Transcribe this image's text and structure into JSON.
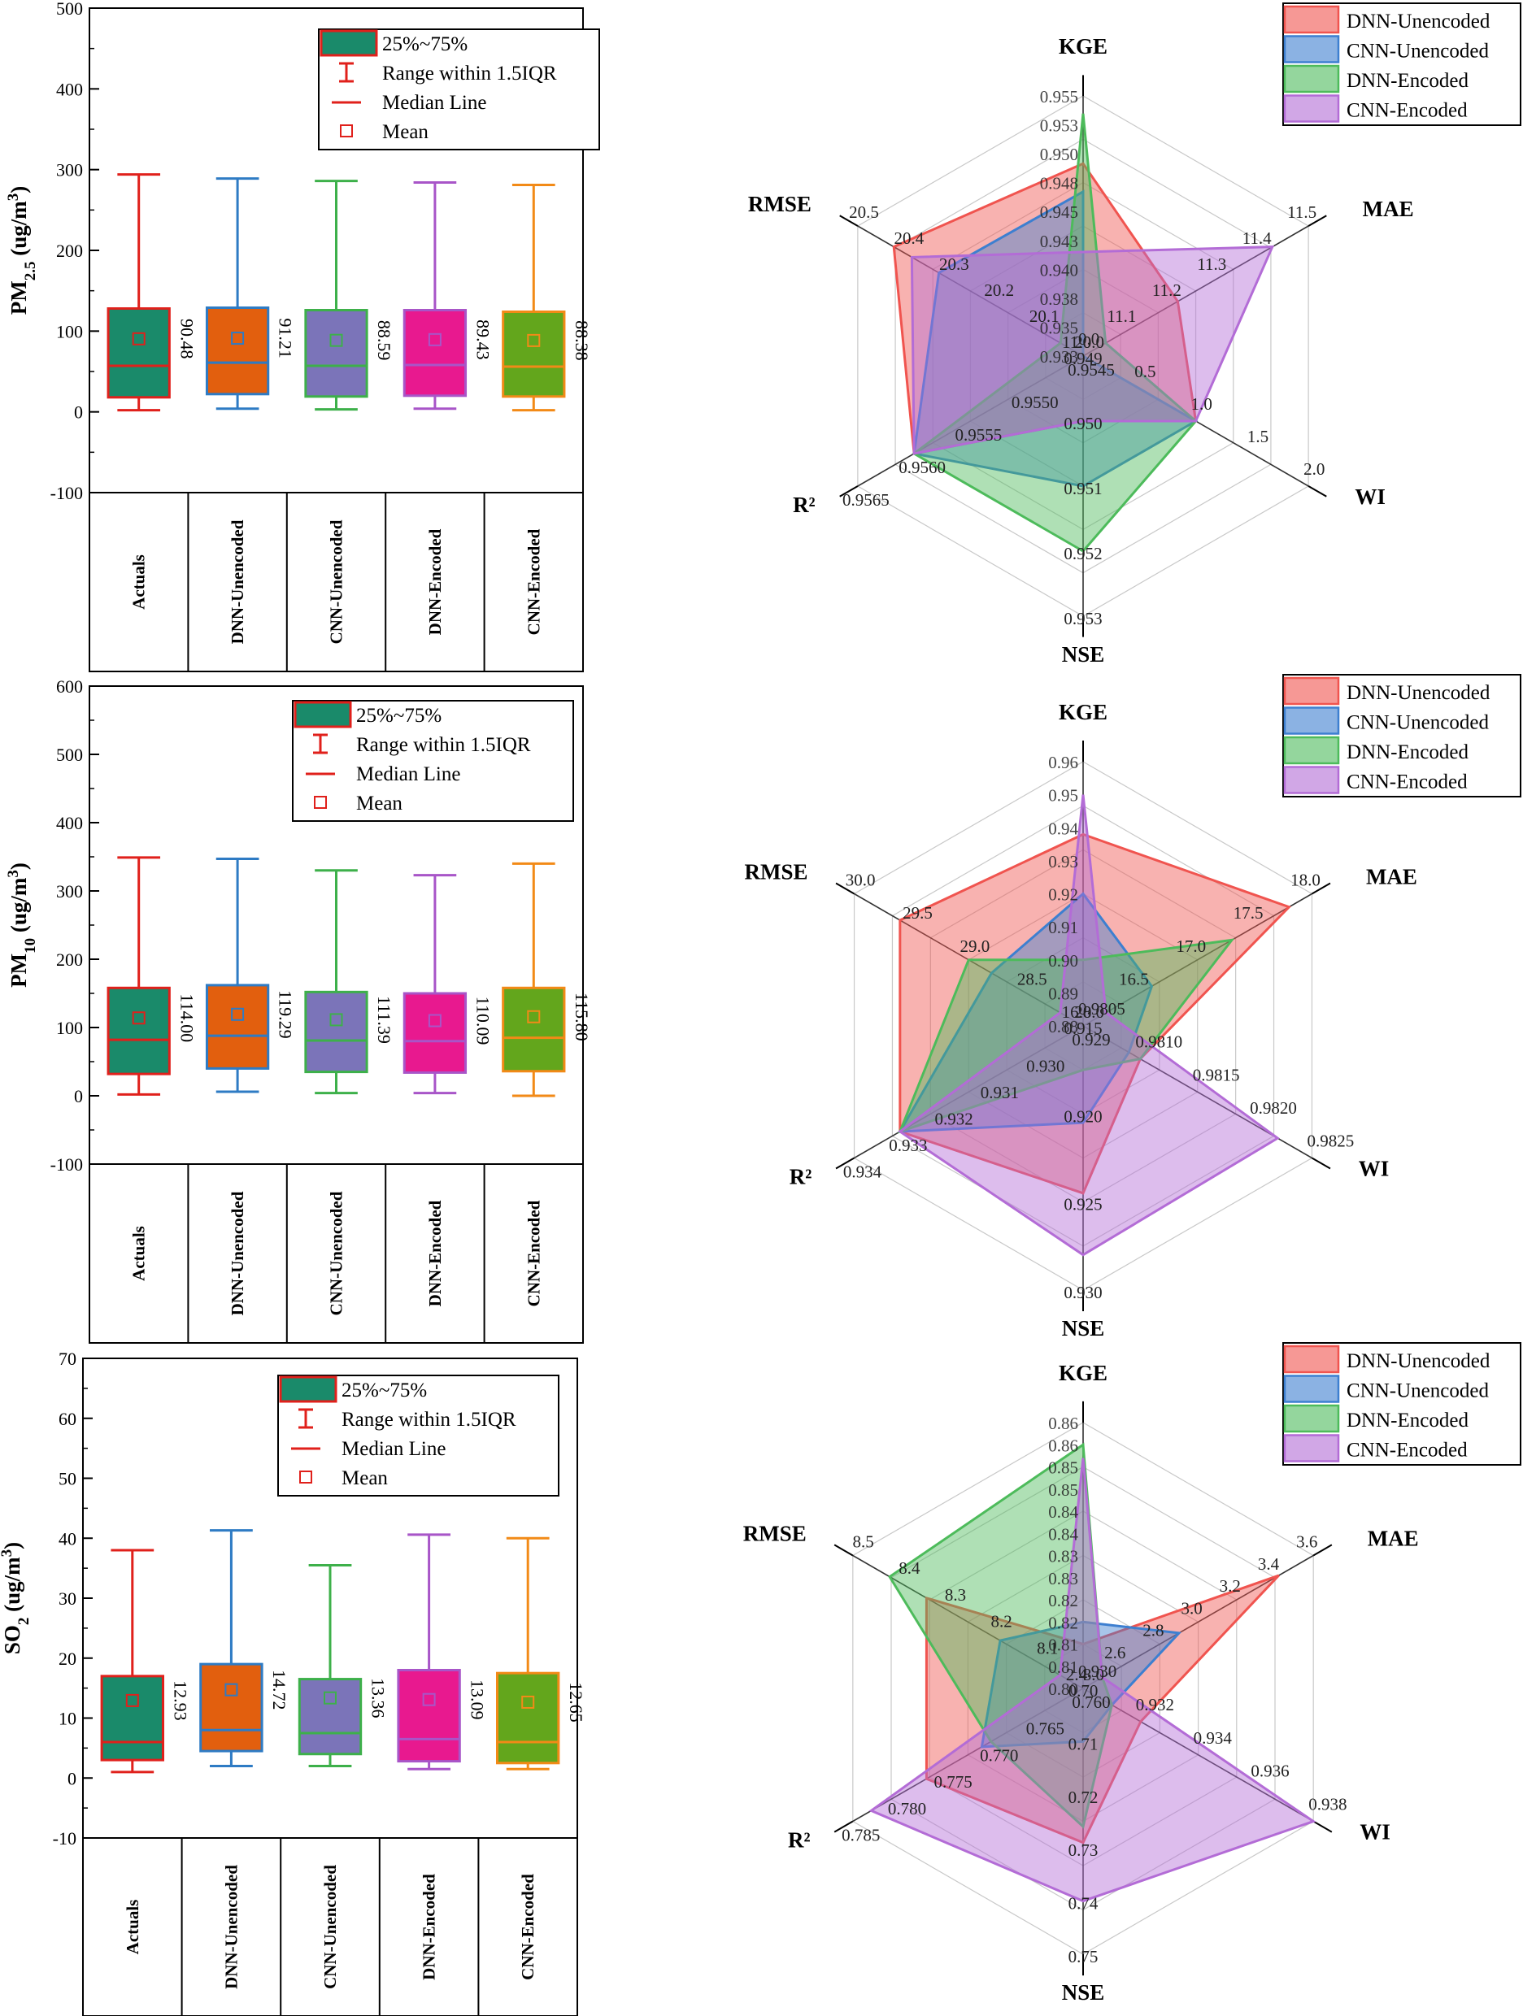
{
  "figure_title": "",
  "colors": {
    "actuals": "#E0201B",
    "dnn_unencoded": "#2E7BC4",
    "cnn_unencoded": "#3DB04A",
    "dnn_encoded": "#A855C8",
    "cnn_encoded": "#F28A17",
    "box_actuals": "#1A8A6A",
    "box_dnn_unencoded": "#E25F0E",
    "box_cnn_unencoded": "#7B74B9",
    "box_dnn_encoded": "#E8198F",
    "box_cnn_encoded": "#63A61C",
    "radar_dnn_unencoded": "#F0544F",
    "radar_cnn_unencoded": "#3D7FD0",
    "radar_dnn_encoded": "#4DBB5B",
    "radar_cnn_encoded": "#B36CD6"
  },
  "chart_data": [
    {
      "type": "box",
      "panel": "PM2.5 box",
      "ylabel": "PM₂.₅ (ug/m³)",
      "ylabel_main": "PM",
      "ylabel_sub": "2.5",
      "ylabel_unit": " (ug/m",
      "ylabel_sup": "3",
      "ylabel_close": ")",
      "ylim": [
        -100,
        500
      ],
      "yticks": [
        -100,
        0,
        100,
        200,
        300,
        400,
        500
      ],
      "categories": [
        "Actuals",
        "DNN-Unencoded",
        "CNN-Unencoded",
        "DNN-Encoded",
        "CNN-Encoded"
      ],
      "boxes": [
        {
          "min": 2,
          "q1": 18,
          "median": 57,
          "q3": 128,
          "max": 294,
          "mean": 90.48,
          "mean_label": "90.48"
        },
        {
          "min": 4,
          "q1": 22,
          "median": 61,
          "q3": 129,
          "max": 289,
          "mean": 91.21,
          "mean_label": "91.21"
        },
        {
          "min": 3,
          "q1": 19,
          "median": 57,
          "q3": 126,
          "max": 286,
          "mean": 88.59,
          "mean_label": "88.59"
        },
        {
          "min": 4,
          "q1": 20,
          "median": 58,
          "q3": 126,
          "max": 284,
          "mean": 89.43,
          "mean_label": "89.43"
        },
        {
          "min": 2,
          "q1": 19,
          "median": 56,
          "q3": 124,
          "max": 281,
          "mean": 88.38,
          "mean_label": "88.38"
        }
      ],
      "legend": [
        "25%~75%",
        "Range within 1.5IQR",
        "Median Line",
        "Mean"
      ]
    },
    {
      "type": "box",
      "panel": "PM10 box",
      "ylabel": "PM₁₀ (ug/m³)",
      "ylabel_main": "PM",
      "ylabel_sub": "10",
      "ylabel_unit": " (ug/m",
      "ylabel_sup": "3",
      "ylabel_close": ")",
      "ylim": [
        -100,
        600
      ],
      "yticks": [
        -100,
        0,
        100,
        200,
        300,
        400,
        500,
        600
      ],
      "categories": [
        "Actuals",
        "DNN-Unencoded",
        "CNN-Unencoded",
        "DNN-Encoded",
        "CNN-Encoded"
      ],
      "boxes": [
        {
          "min": 2,
          "q1": 32,
          "median": 82,
          "q3": 158,
          "max": 349,
          "mean": 114.0,
          "mean_label": "114.00"
        },
        {
          "min": 6,
          "q1": 40,
          "median": 88,
          "q3": 162,
          "max": 347,
          "mean": 119.29,
          "mean_label": "119.29"
        },
        {
          "min": 4,
          "q1": 35,
          "median": 81,
          "q3": 152,
          "max": 330,
          "mean": 111.39,
          "mean_label": "111.39"
        },
        {
          "min": 4,
          "q1": 34,
          "median": 80,
          "q3": 150,
          "max": 323,
          "mean": 110.09,
          "mean_label": "110.09"
        },
        {
          "min": 0,
          "q1": 36,
          "median": 85,
          "q3": 158,
          "max": 340,
          "mean": 115.8,
          "mean_label": "115.80"
        }
      ],
      "legend": [
        "25%~75%",
        "Range within 1.5IQR",
        "Median Line",
        "Mean"
      ]
    },
    {
      "type": "box",
      "panel": "SO2 box",
      "ylabel": "SO₂ (ug/m³)",
      "ylabel_main": "SO",
      "ylabel_sub": "2",
      "ylabel_unit": " (ug/m",
      "ylabel_sup": "3",
      "ylabel_close": ")",
      "ylim": [
        -10,
        70
      ],
      "yticks": [
        -10,
        0,
        10,
        20,
        30,
        40,
        50,
        60,
        70
      ],
      "categories": [
        "Actuals",
        "DNN-Unencoded",
        "CNN-Unencoded",
        "DNN-Encoded",
        "CNN-Encoded"
      ],
      "boxes": [
        {
          "min": 1,
          "q1": 3,
          "median": 6,
          "q3": 17,
          "max": 38,
          "mean": 12.93,
          "mean_label": "12.93"
        },
        {
          "min": 2,
          "q1": 4.5,
          "median": 8,
          "q3": 19,
          "max": 41.3,
          "mean": 14.72,
          "mean_label": "14.72"
        },
        {
          "min": 2,
          "q1": 4,
          "median": 7.5,
          "q3": 16.5,
          "max": 35.5,
          "mean": 13.36,
          "mean_label": "13.36"
        },
        {
          "min": 1.5,
          "q1": 2.8,
          "median": 6.5,
          "q3": 18,
          "max": 40.6,
          "mean": 13.09,
          "mean_label": "13.09"
        },
        {
          "min": 1.5,
          "q1": 2.5,
          "median": 6,
          "q3": 17.5,
          "max": 40,
          "mean": 12.65,
          "mean_label": "12.65"
        }
      ],
      "legend": [
        "25%~75%",
        "Range within 1.5IQR",
        "Median Line",
        "Mean"
      ]
    },
    {
      "type": "radar",
      "panel": "PM2.5 radar",
      "axes": [
        {
          "name": "KGE",
          "min": 0.93,
          "max": 0.955,
          "ticks": [
            "0.955",
            "0.953",
            "0.950",
            "0.948",
            "0.945",
            "0.943",
            "0.940",
            "0.938",
            "0.935",
            "0.933"
          ]
        },
        {
          "name": "MAE",
          "min": 11.0,
          "max": 11.5,
          "ticks": [
            "11.5",
            "11.4",
            "11.3",
            "11.2",
            "11.1",
            "11.0"
          ]
        },
        {
          "name": "WI",
          "min": 0.0,
          "max": 2.0,
          "ticks": [
            "2.0",
            "1.5",
            "1.0",
            "0.5",
            "0.0"
          ]
        },
        {
          "name": "NSE",
          "min": 0.949,
          "max": 0.953,
          "ticks": [
            "0.953",
            "0.952",
            "0.951",
            "0.950",
            "0.949"
          ]
        },
        {
          "name": "R²",
          "min": 0.9545,
          "max": 0.9565,
          "ticks": [
            "0.9565",
            "0.9560",
            "0.9555",
            "0.9550",
            "0.9545"
          ]
        },
        {
          "name": "RMSE",
          "min": 20.0,
          "max": 20.5,
          "ticks": [
            "20.5",
            "20.4",
            "20.3",
            "20.2",
            "20.1",
            "20.0"
          ]
        }
      ],
      "series": [
        {
          "name": "DNN-Unencoded",
          "values": [
            0.9485,
            11.21,
            1.0,
            0.95,
            0.956,
            20.42
          ]
        },
        {
          "name": "CNN-Unencoded",
          "values": [
            0.9458,
            11.0,
            1.0,
            0.951,
            0.956,
            20.32
          ]
        },
        {
          "name": "DNN-Encoded",
          "values": [
            0.9533,
            11.05,
            1.0,
            0.952,
            0.956,
            20.05
          ]
        },
        {
          "name": "CNN-Encoded",
          "values": [
            0.94,
            11.42,
            1.0,
            0.95,
            0.956,
            20.38
          ]
        }
      ],
      "legend": [
        "DNN-Unencoded",
        "CNN-Unencoded",
        "DNN-Encoded",
        "CNN-Encoded"
      ]
    },
    {
      "type": "radar",
      "panel": "PM10 radar",
      "axes": [
        {
          "name": "KGE",
          "min": 0.88,
          "max": 0.96,
          "ticks": [
            "0.96",
            "0.95",
            "0.94",
            "0.93",
            "0.92",
            "0.91",
            "0.90",
            "0.89",
            "0.88"
          ]
        },
        {
          "name": "MAE",
          "min": 16.0,
          "max": 18.0,
          "ticks": [
            "18.0",
            "17.5",
            "17.0",
            "16.5",
            "16.0"
          ]
        },
        {
          "name": "WI",
          "min": 0.9805,
          "max": 0.9825,
          "ticks": [
            "0.9825",
            "0.9820",
            "0.9815",
            "0.9810",
            "0.9805"
          ]
        },
        {
          "name": "NSE",
          "min": 0.915,
          "max": 0.93,
          "ticks": [
            "0.930",
            "0.925",
            "0.920",
            "0.915"
          ]
        },
        {
          "name": "R²",
          "min": 0.929,
          "max": 0.934,
          "ticks": [
            "0.934",
            "0.933",
            "0.932",
            "0.931",
            "0.930",
            "0.929"
          ]
        },
        {
          "name": "RMSE",
          "min": 28.0,
          "max": 30.0,
          "ticks": [
            "30.0",
            "29.5",
            "29.0",
            "28.5",
            "28.0"
          ]
        }
      ],
      "series": [
        {
          "name": "DNN-Unencoded",
          "values": [
            0.938,
            17.8,
            0.981,
            0.9245,
            0.933,
            29.6
          ]
        },
        {
          "name": "CNN-Unencoded",
          "values": [
            0.92,
            16.6,
            0.9809,
            0.9205,
            0.933,
            28.8
          ]
        },
        {
          "name": "DNN-Encoded",
          "values": [
            0.9,
            17.3,
            0.981,
            0.9175,
            0.933,
            29.0
          ]
        },
        {
          "name": "CNN-Encoded",
          "values": [
            0.95,
            16.2,
            0.9822,
            0.928,
            0.933,
            28.2
          ]
        }
      ],
      "legend": [
        "DNN-Unencoded",
        "CNN-Unencoded",
        "DNN-Encoded",
        "CNN-Encoded"
      ]
    },
    {
      "type": "radar",
      "panel": "SO2 radar",
      "axes": [
        {
          "name": "KGE",
          "min": 0.8,
          "max": 0.86,
          "ticks": [
            "0.86",
            "0.86",
            "0.85",
            "0.85",
            "0.84",
            "0.84",
            "0.83",
            "0.83",
            "0.82",
            "0.82",
            "0.81",
            "0.81",
            "0.80"
          ]
        },
        {
          "name": "MAE",
          "min": 2.4,
          "max": 3.6,
          "ticks": [
            "3.6",
            "3.4",
            "3.2",
            "3.0",
            "2.8",
            "2.6",
            "2.4"
          ]
        },
        {
          "name": "WI",
          "min": 0.93,
          "max": 0.938,
          "ticks": [
            "0.938",
            "0.936",
            "0.934",
            "0.932",
            "0.930"
          ]
        },
        {
          "name": "NSE",
          "min": 0.7,
          "max": 0.75,
          "ticks": [
            "0.75",
            "0.74",
            "0.73",
            "0.72",
            "0.71",
            "0.70"
          ]
        },
        {
          "name": "R²",
          "min": 0.76,
          "max": 0.785,
          "ticks": [
            "0.785",
            "0.780",
            "0.775",
            "0.770",
            "0.765",
            "0.760"
          ]
        },
        {
          "name": "RMSE",
          "min": 8.0,
          "max": 8.5,
          "ticks": [
            "8.5",
            "8.4",
            "8.3",
            "8.2",
            "8.1",
            "8.0"
          ]
        }
      ],
      "series": [
        {
          "name": "DNN-Unencoded",
          "values": [
            0.81,
            3.42,
            0.932,
            0.729,
            0.777,
            8.34
          ]
        },
        {
          "name": "CNN-Unencoded",
          "values": [
            0.815,
            2.9,
            0.931,
            0.71,
            0.771,
            8.18
          ]
        },
        {
          "name": "DNN-Encoded",
          "values": [
            0.855,
            2.5,
            0.931,
            0.726,
            0.77,
            8.42
          ]
        },
        {
          "name": "CNN-Encoded",
          "values": [
            0.852,
            2.5,
            0.938,
            0.74,
            0.783,
            8.05
          ]
        }
      ],
      "legend": [
        "DNN-Unencoded",
        "CNN-Unencoded",
        "DNN-Encoded",
        "CNN-Encoded"
      ]
    }
  ]
}
